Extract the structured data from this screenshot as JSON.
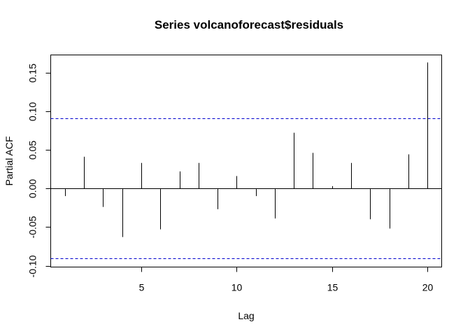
{
  "chart_data": {
    "type": "bar",
    "title": "Series  volcanoforecast$residuals",
    "xlabel": "Lag",
    "ylabel": "Partial ACF",
    "xlim": [
      0.25,
      20.75
    ],
    "ylim": [
      -0.1018,
      0.1727
    ],
    "x_ticks": [
      5,
      10,
      15,
      20
    ],
    "y_ticks": [
      -0.1,
      -0.05,
      0.0,
      0.05,
      0.1,
      0.15
    ],
    "x_tick_labels": [
      "5",
      "10",
      "15",
      "20"
    ],
    "y_tick_labels": [
      "-0.10",
      "-0.05",
      "0.00",
      "0.05",
      "0.10",
      "0.15"
    ],
    "confidence_bound": 0.0906,
    "confidence_color": "#0000cc",
    "lags": [
      1,
      2,
      3,
      4,
      5,
      6,
      7,
      8,
      9,
      10,
      11,
      12,
      13,
      14,
      15,
      16,
      17,
      18,
      19,
      20
    ],
    "values": [
      -0.01,
      0.041,
      -0.024,
      -0.063,
      0.033,
      -0.053,
      0.022,
      0.033,
      -0.027,
      0.016,
      -0.01,
      -0.039,
      0.072,
      0.046,
      0.003,
      0.033,
      -0.04,
      -0.052,
      0.044,
      0.163
    ],
    "grid": false,
    "legend": "none"
  }
}
